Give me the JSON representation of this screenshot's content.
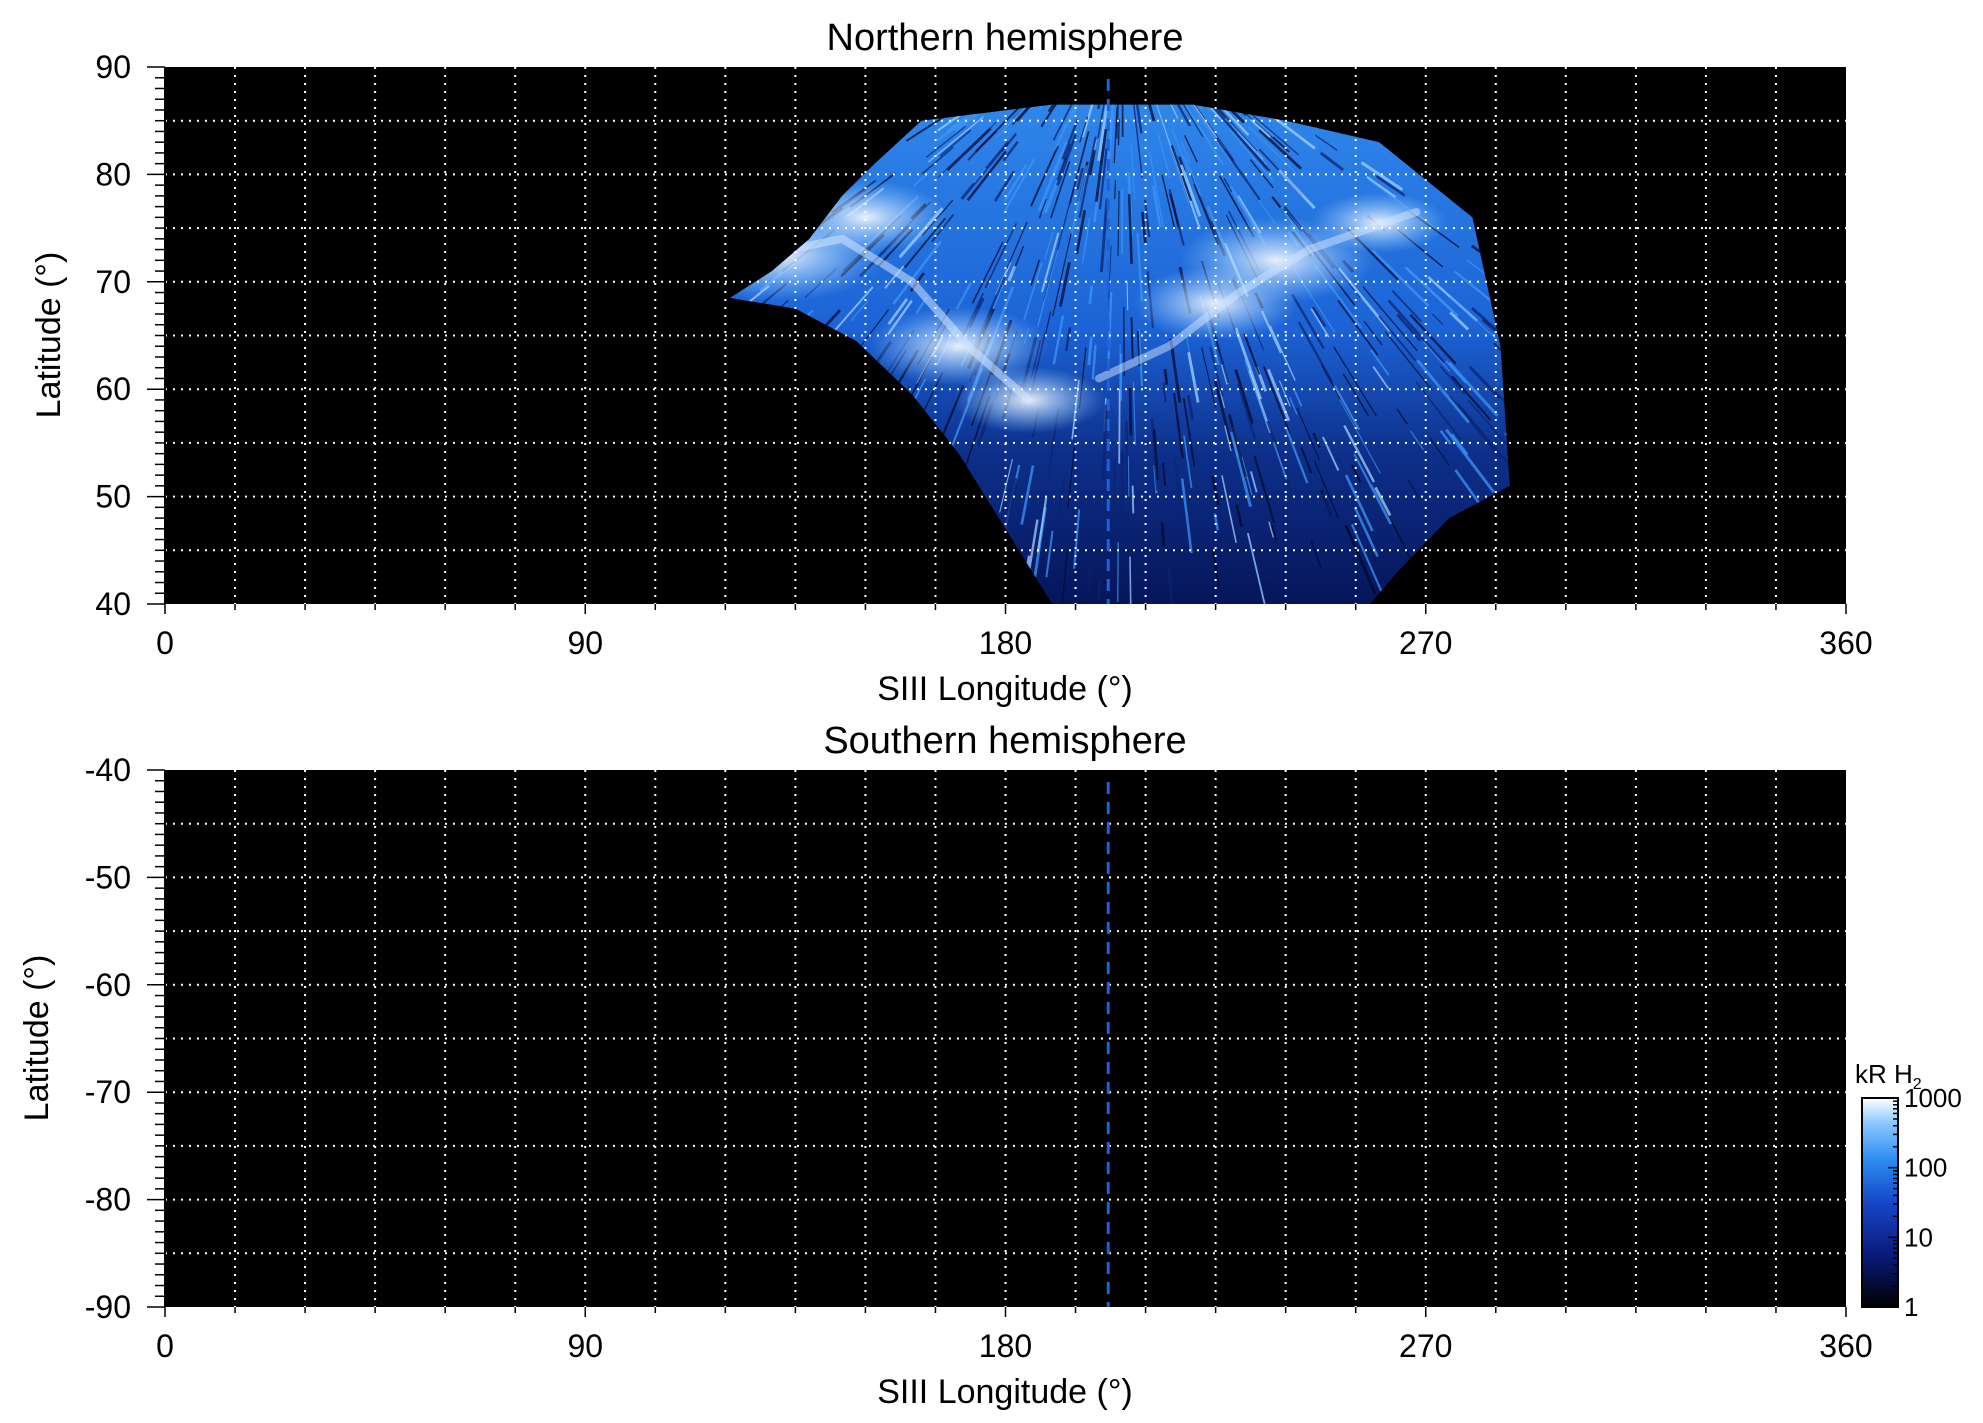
{
  "chart_data": [
    {
      "type": "heatmap",
      "title": "Northern hemisphere",
      "xlabel": "SIII Longitude (°)",
      "ylabel": "Latitude (°)",
      "xlim": [
        0,
        360
      ],
      "ylim": [
        40,
        90
      ],
      "xticks": [
        "0",
        "90",
        "180",
        "270",
        "360"
      ],
      "yticks": [
        "40",
        "50",
        "60",
        "70",
        "80",
        "90"
      ],
      "grid": true,
      "grid_x_step": 15,
      "grid_y_step": 5,
      "reference_longitude": 202,
      "coverage_boundary": [
        [
          121,
          68.5
        ],
        [
          130,
          71
        ],
        [
          138,
          74
        ],
        [
          145,
          78
        ],
        [
          152,
          81
        ],
        [
          162,
          85
        ],
        [
          190,
          86.5
        ],
        [
          220,
          86.5
        ],
        [
          240,
          85
        ],
        [
          260,
          83
        ],
        [
          280,
          76
        ],
        [
          286,
          64
        ],
        [
          288,
          51
        ],
        [
          275,
          48
        ],
        [
          264,
          43
        ],
        [
          258,
          40
        ],
        [
          190,
          40
        ],
        [
          180,
          47
        ],
        [
          170,
          54
        ],
        [
          160,
          59.5
        ],
        [
          148,
          64.5
        ],
        [
          135,
          67.5
        ],
        [
          121,
          68.5
        ]
      ],
      "emission_features": [
        {
          "lon": 132,
          "lat": 72.5,
          "brightness": 1000
        },
        {
          "lon": 150,
          "lat": 76,
          "brightness": 700
        },
        {
          "lon": 170,
          "lat": 64,
          "brightness": 800
        },
        {
          "lon": 185,
          "lat": 59,
          "brightness": 600
        },
        {
          "lon": 225,
          "lat": 68,
          "brightness": 700
        },
        {
          "lon": 238,
          "lat": 72,
          "brightness": 900
        },
        {
          "lon": 260,
          "lat": 75.5,
          "brightness": 500
        }
      ]
    },
    {
      "type": "heatmap",
      "title": "Southern hemisphere",
      "xlabel": "SIII Longitude (°)",
      "ylabel": "Latitude (°)",
      "xlim": [
        0,
        360
      ],
      "ylim": [
        -90,
        -40
      ],
      "xticks": [
        "0",
        "90",
        "180",
        "270",
        "360"
      ],
      "yticks": [
        "-90",
        "-80",
        "-70",
        "-60",
        "-50",
        "-40"
      ],
      "grid": true,
      "grid_x_step": 15,
      "grid_y_step": 5,
      "reference_longitude": 202
    }
  ],
  "colorbar": {
    "title": "kR H",
    "title_sub": "2",
    "scale": "log",
    "range": [
      1,
      1000
    ],
    "ticks": [
      "1",
      "10",
      "100",
      "1000"
    ],
    "colors": [
      "#000000",
      "#0a1a7a",
      "#1646c8",
      "#2a8cf0",
      "#8cc8ff",
      "#ffffff"
    ]
  }
}
